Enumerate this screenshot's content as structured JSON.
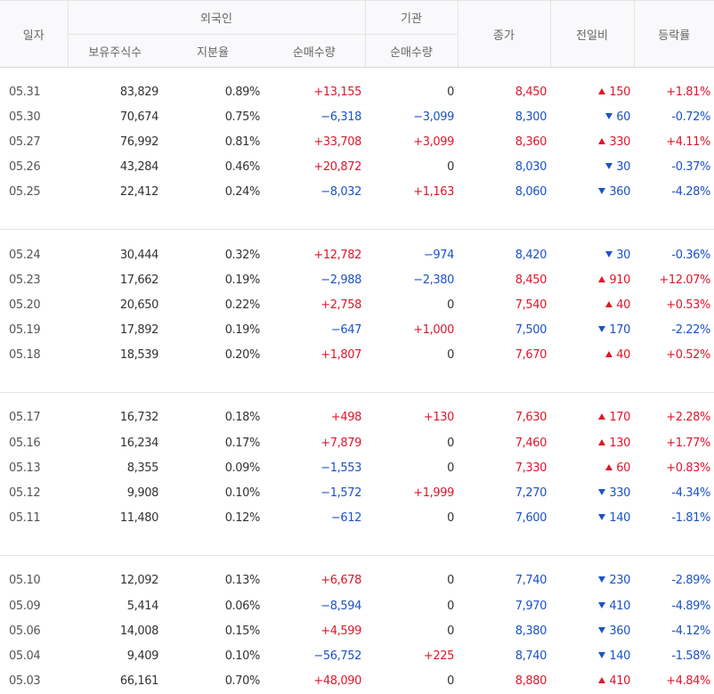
{
  "colors": {
    "up": "#e0162b",
    "down": "#1c52c8",
    "neutral": "#333333",
    "header_bg": "#f9f9fb",
    "border": "#e4e4e4"
  },
  "header": {
    "date": "일자",
    "foreign": "외국인",
    "institution": "기관",
    "close": "종가",
    "change": "전일비",
    "rate": "등락률",
    "holdings": "보유주식수",
    "ratio": "지분율",
    "foreign_net": "순매수량",
    "inst_net": "순매수량"
  },
  "groups": [
    [
      {
        "date": "05.31",
        "holdings": "83,829",
        "ratio": "0.89%",
        "foreign_net": "+13,155",
        "inst_net": "0",
        "close": "8,450",
        "change": "150",
        "direction": "up",
        "rate": "+1.81%"
      },
      {
        "date": "05.30",
        "holdings": "70,674",
        "ratio": "0.75%",
        "foreign_net": "−6,318",
        "inst_net": "−3,099",
        "close": "8,300",
        "change": "60",
        "direction": "down",
        "rate": "-0.72%"
      },
      {
        "date": "05.27",
        "holdings": "76,992",
        "ratio": "0.81%",
        "foreign_net": "+33,708",
        "inst_net": "+3,099",
        "close": "8,360",
        "change": "330",
        "direction": "up",
        "rate": "+4.11%"
      },
      {
        "date": "05.26",
        "holdings": "43,284",
        "ratio": "0.46%",
        "foreign_net": "+20,872",
        "inst_net": "0",
        "close": "8,030",
        "change": "30",
        "direction": "down",
        "rate": "-0.37%"
      },
      {
        "date": "05.25",
        "holdings": "22,412",
        "ratio": "0.24%",
        "foreign_net": "−8,032",
        "inst_net": "+1,163",
        "close": "8,060",
        "change": "360",
        "direction": "down",
        "rate": "-4.28%"
      }
    ],
    [
      {
        "date": "05.24",
        "holdings": "30,444",
        "ratio": "0.32%",
        "foreign_net": "+12,782",
        "inst_net": "−974",
        "close": "8,420",
        "change": "30",
        "direction": "down",
        "rate": "-0.36%"
      },
      {
        "date": "05.23",
        "holdings": "17,662",
        "ratio": "0.19%",
        "foreign_net": "−2,988",
        "inst_net": "−2,380",
        "close": "8,450",
        "change": "910",
        "direction": "up",
        "rate": "+12.07%"
      },
      {
        "date": "05.20",
        "holdings": "20,650",
        "ratio": "0.22%",
        "foreign_net": "+2,758",
        "inst_net": "0",
        "close": "7,540",
        "change": "40",
        "direction": "up",
        "rate": "+0.53%"
      },
      {
        "date": "05.19",
        "holdings": "17,892",
        "ratio": "0.19%",
        "foreign_net": "−647",
        "inst_net": "+1,000",
        "close": "7,500",
        "change": "170",
        "direction": "down",
        "rate": "-2.22%"
      },
      {
        "date": "05.18",
        "holdings": "18,539",
        "ratio": "0.20%",
        "foreign_net": "+1,807",
        "inst_net": "0",
        "close": "7,670",
        "change": "40",
        "direction": "up",
        "rate": "+0.52%"
      }
    ],
    [
      {
        "date": "05.17",
        "holdings": "16,732",
        "ratio": "0.18%",
        "foreign_net": "+498",
        "inst_net": "+130",
        "close": "7,630",
        "change": "170",
        "direction": "up",
        "rate": "+2.28%"
      },
      {
        "date": "05.16",
        "holdings": "16,234",
        "ratio": "0.17%",
        "foreign_net": "+7,879",
        "inst_net": "0",
        "close": "7,460",
        "change": "130",
        "direction": "up",
        "rate": "+1.77%"
      },
      {
        "date": "05.13",
        "holdings": "8,355",
        "ratio": "0.09%",
        "foreign_net": "−1,553",
        "inst_net": "0",
        "close": "7,330",
        "change": "60",
        "direction": "up",
        "rate": "+0.83%"
      },
      {
        "date": "05.12",
        "holdings": "9,908",
        "ratio": "0.10%",
        "foreign_net": "−1,572",
        "inst_net": "+1,999",
        "close": "7,270",
        "change": "330",
        "direction": "down",
        "rate": "-4.34%"
      },
      {
        "date": "05.11",
        "holdings": "11,480",
        "ratio": "0.12%",
        "foreign_net": "−612",
        "inst_net": "0",
        "close": "7,600",
        "change": "140",
        "direction": "down",
        "rate": "-1.81%"
      }
    ],
    [
      {
        "date": "05.10",
        "holdings": "12,092",
        "ratio": "0.13%",
        "foreign_net": "+6,678",
        "inst_net": "0",
        "close": "7,740",
        "change": "230",
        "direction": "down",
        "rate": "-2.89%"
      },
      {
        "date": "05.09",
        "holdings": "5,414",
        "ratio": "0.06%",
        "foreign_net": "−8,594",
        "inst_net": "0",
        "close": "7,970",
        "change": "410",
        "direction": "down",
        "rate": "-4.89%"
      },
      {
        "date": "05.06",
        "holdings": "14,008",
        "ratio": "0.15%",
        "foreign_net": "+4,599",
        "inst_net": "0",
        "close": "8,380",
        "change": "360",
        "direction": "down",
        "rate": "-4.12%"
      },
      {
        "date": "05.04",
        "holdings": "9,409",
        "ratio": "0.10%",
        "foreign_net": "−56,752",
        "inst_net": "+225",
        "close": "8,740",
        "change": "140",
        "direction": "down",
        "rate": "-1.58%"
      },
      {
        "date": "05.03",
        "holdings": "66,161",
        "ratio": "0.70%",
        "foreign_net": "+48,090",
        "inst_net": "0",
        "close": "8,880",
        "change": "410",
        "direction": "up",
        "rate": "+4.84%"
      }
    ]
  ]
}
